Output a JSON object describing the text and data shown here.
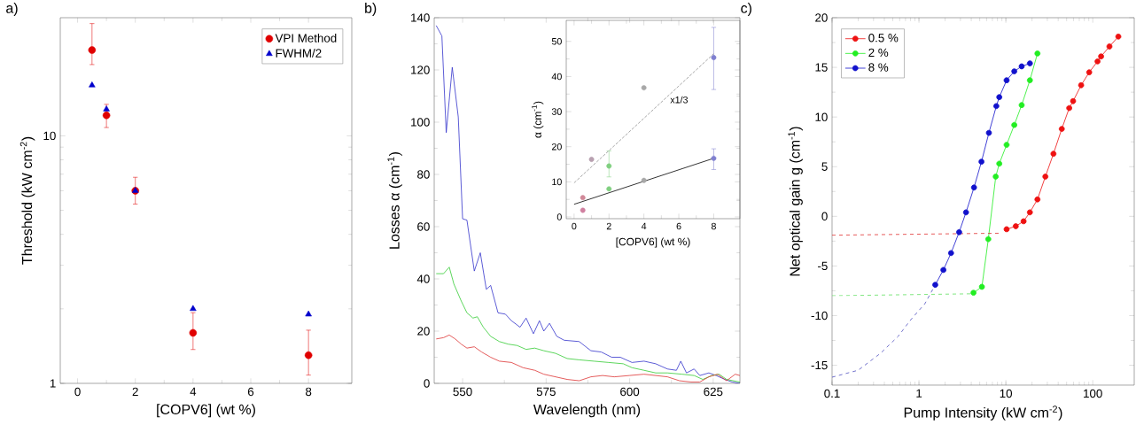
{
  "chart_data": [
    {
      "type": "scatter",
      "title": "a)",
      "xlabel": "[COPV6] (wt %)",
      "ylabel": "Threshold (kW cm$^{-2}$)",
      "x": [
        0.5,
        1,
        2,
        4,
        8
      ],
      "log": "y",
      "xlim": [
        -0.6,
        9.5
      ],
      "ylim": [
        1,
        30
      ],
      "xticks": [
        0,
        2,
        4,
        6,
        8
      ],
      "yticks": [
        1,
        10
      ],
      "legend": "top right",
      "series": [
        {
          "name": "VPI Method",
          "color": "#e00000",
          "marker": "circle",
          "values": [
            22.2,
            12.1,
            6.0,
            1.6,
            1.3
          ],
          "errors": [
            [
              19.4,
              28.4
            ],
            [
              10.8,
              13.4
            ],
            [
              5.3,
              6.8
            ],
            [
              1.37,
              1.93
            ],
            [
              1.08,
              1.64
            ]
          ]
        },
        {
          "name": "FWHM/2",
          "color": "#0000cc",
          "marker": "triangle",
          "values": [
            16.0,
            12.8,
            6.0,
            2.0,
            1.9
          ]
        }
      ]
    },
    {
      "type": "line",
      "title": "b)",
      "xlabel": "Wavelength (nm)",
      "ylabel": "Losses α (cm$^{-1}$)",
      "xlim": [
        541.5,
        633
      ],
      "ylim": [
        0,
        140
      ],
      "xticks": [
        550,
        575,
        600,
        625
      ],
      "yticks": [
        0,
        20,
        40,
        60,
        80,
        100,
        120,
        140
      ],
      "series": [
        {
          "color": "#3333cc",
          "x": [
            542.1,
            543.8,
            545.1,
            546.9,
            548.7,
            550,
            551.3,
            553.5,
            555.3,
            557.1,
            558.4,
            560.6,
            562.8,
            564.6,
            567.2,
            569,
            571.2,
            573,
            574.3,
            576,
            578.2,
            580.4,
            584.9,
            588.4,
            591.5,
            594.6,
            597.2,
            600.7,
            604.3,
            607.8,
            611.3,
            614,
            615.3,
            617,
            619.3,
            621,
            623.7,
            625.9,
            628.5,
            630.7,
            633
          ],
          "values": [
            137,
            133,
            96,
            121,
            102,
            63,
            62.5,
            43,
            50,
            36,
            37.5,
            27,
            26.5,
            24,
            21.5,
            25,
            19,
            24,
            20,
            23,
            18,
            16.5,
            16,
            12.5,
            12,
            10,
            10,
            8,
            8.5,
            7.5,
            5.5,
            5,
            8.5,
            4,
            5.5,
            3,
            4,
            3,
            1.5,
            0.5,
            0
          ]
        },
        {
          "color": "#33cc33",
          "x": [
            542.1,
            544.3,
            546,
            547.4,
            549.6,
            551.3,
            553.1,
            554.4,
            556.2,
            558.4,
            561,
            563.7,
            566.3,
            569,
            571.6,
            574.3,
            577.8,
            581.3,
            584.9,
            589.3,
            593.7,
            598.1,
            600.7,
            604.3,
            607.8,
            611.3,
            615.7,
            619.3,
            621.9,
            624.6,
            626.8,
            629,
            633
          ],
          "values": [
            42,
            42,
            44.5,
            38,
            31.5,
            27,
            25,
            25.5,
            21.5,
            18,
            16,
            15,
            14.5,
            13,
            13.5,
            12.5,
            11.5,
            9.5,
            9,
            8.5,
            8,
            7.5,
            6,
            5,
            4,
            4,
            3.5,
            3,
            1.5,
            3,
            3.5,
            1.5,
            0.5
          ]
        },
        {
          "color": "#dd3333",
          "x": [
            542.1,
            544.3,
            546,
            547.8,
            549.6,
            551.3,
            553.5,
            555.7,
            558.4,
            561,
            564.6,
            568.1,
            571.6,
            574.3,
            577.8,
            581.3,
            584.9,
            588.4,
            591.9,
            595.4,
            599.9,
            604.3,
            607.8,
            611.3,
            614.9,
            618.4,
            621,
            623.7,
            626.3,
            629,
            631.6,
            633
          ],
          "values": [
            17,
            17.5,
            18.5,
            17,
            15,
            13.5,
            14,
            12,
            10,
            8.5,
            8,
            6,
            5,
            3.5,
            2.5,
            1.5,
            1,
            2.5,
            3,
            2.5,
            3,
            3.5,
            3,
            2.5,
            1,
            0.5,
            0.5,
            2.5,
            3.5,
            1,
            3.5,
            3
          ]
        }
      ]
    },
    {
      "type": "scatter",
      "xlabel": "[COPV6] (wt %)",
      "ylabel": "α (cm$^{-1}$)",
      "xlim": [
        -0.45,
        9.5
      ],
      "ylim": [
        -0.5,
        56
      ],
      "xticks": [
        0,
        2,
        4,
        6,
        8
      ],
      "yticks": [
        0,
        10,
        20,
        30,
        40,
        50
      ],
      "annotations": [
        "x1/3"
      ],
      "series": [
        {
          "marker": "circle",
          "x": [
            0.5,
            0.5,
            1,
            2,
            2,
            4,
            4,
            8,
            8
          ],
          "values": [
            5.5,
            1.9,
            16.4,
            14.5,
            8,
            10.4,
            36.8,
            45.4,
            16.7
          ],
          "colors": [
            "#d08898",
            "#d080a0",
            "#b8a0b0",
            "#80d080",
            "#80d080",
            "#a8a8a8",
            "#a8a8a8",
            "#8080d0",
            "#8080d0"
          ],
          "errors": [
            null,
            null,
            null,
            [
              11.4,
              18.8
            ],
            null,
            null,
            null,
            [
              36.3,
              54
            ],
            [
              13.5,
              19.4
            ]
          ]
        },
        {
          "type": "line",
          "color": "#000000",
          "x": [
            0,
            8
          ],
          "values": [
            3.6,
            16.7
          ]
        },
        {
          "type": "line",
          "color": "#909090",
          "line_style": "dashed",
          "x": [
            0,
            8
          ],
          "values": [
            9.7,
            46.5
          ]
        }
      ]
    },
    {
      "type": "line",
      "title": "c)",
      "xlabel": "Pump Intensity (kW cm$^{-2}$)",
      "ylabel": "Net optical gain g (cm$^{-1}$)",
      "log": "x",
      "marker": "circle",
      "xlim": [
        0.1,
        300
      ],
      "ylim": [
        -17,
        20
      ],
      "xticks": [
        0.1,
        1,
        10,
        100
      ],
      "yticks": [
        -15,
        -10,
        -5,
        0,
        5,
        10,
        15,
        20
      ],
      "legend": "top left",
      "series": [
        {
          "name": "0.5 %",
          "color": "#ee1111",
          "x": [
            10.2,
            13.0,
            16.0,
            18.9,
            23.1,
            28.5,
            35.3,
            44.0,
            53.6,
            59.4,
            73.5,
            91.0,
            113.5,
            124.7,
            155.6,
            197
          ],
          "values": [
            -1.3,
            -1.0,
            -0.5,
            0.4,
            1.7,
            4.0,
            6.3,
            8.8,
            10.9,
            11.6,
            13.2,
            14.5,
            15.6,
            16.1,
            17.1,
            18.1
          ]
        },
        {
          "name": "2 %",
          "color": "#22ee22",
          "x": [
            4.24,
            5.3,
            6.28,
            7.65,
            8.4,
            10.2,
            12.5,
            15.2,
            18.9,
            23.1
          ],
          "values": [
            -7.7,
            -7.1,
            -2.3,
            4.0,
            5.3,
            7.2,
            9.2,
            11.2,
            13.7,
            16.4
          ]
        },
        {
          "name": "8 %",
          "color": "#1111cc",
          "x": [
            1.54,
            1.91,
            2.34,
            2.9,
            3.48,
            4.3,
            5.24,
            6.38,
            7.77,
            8.4,
            10.2,
            12.5,
            15.2,
            18.9
          ],
          "values": [
            -6.9,
            -5.4,
            -3.7,
            -1.6,
            0.4,
            2.9,
            5.5,
            8.4,
            11.1,
            12.0,
            13.7,
            14.6,
            15.1,
            15.4
          ]
        },
        {
          "color": "#e03030",
          "marker": "none",
          "line_style": "dashed",
          "x": [
            0.1,
            9
          ],
          "values": [
            -1.9,
            -1.7
          ]
        },
        {
          "color": "#60e060",
          "marker": "none",
          "line_style": "dashed",
          "x": [
            0.1,
            4.24
          ],
          "values": [
            -8.0,
            -7.8
          ]
        },
        {
          "color": "#5050c0",
          "marker": "none",
          "line_style": "dashed",
          "x": [
            0.1,
            0.2,
            0.36,
            0.575,
            0.79,
            1.17,
            1.54
          ],
          "values": [
            -16.2,
            -15.5,
            -13.8,
            -12.1,
            -10.5,
            -8.8,
            -6.9
          ]
        }
      ]
    }
  ]
}
